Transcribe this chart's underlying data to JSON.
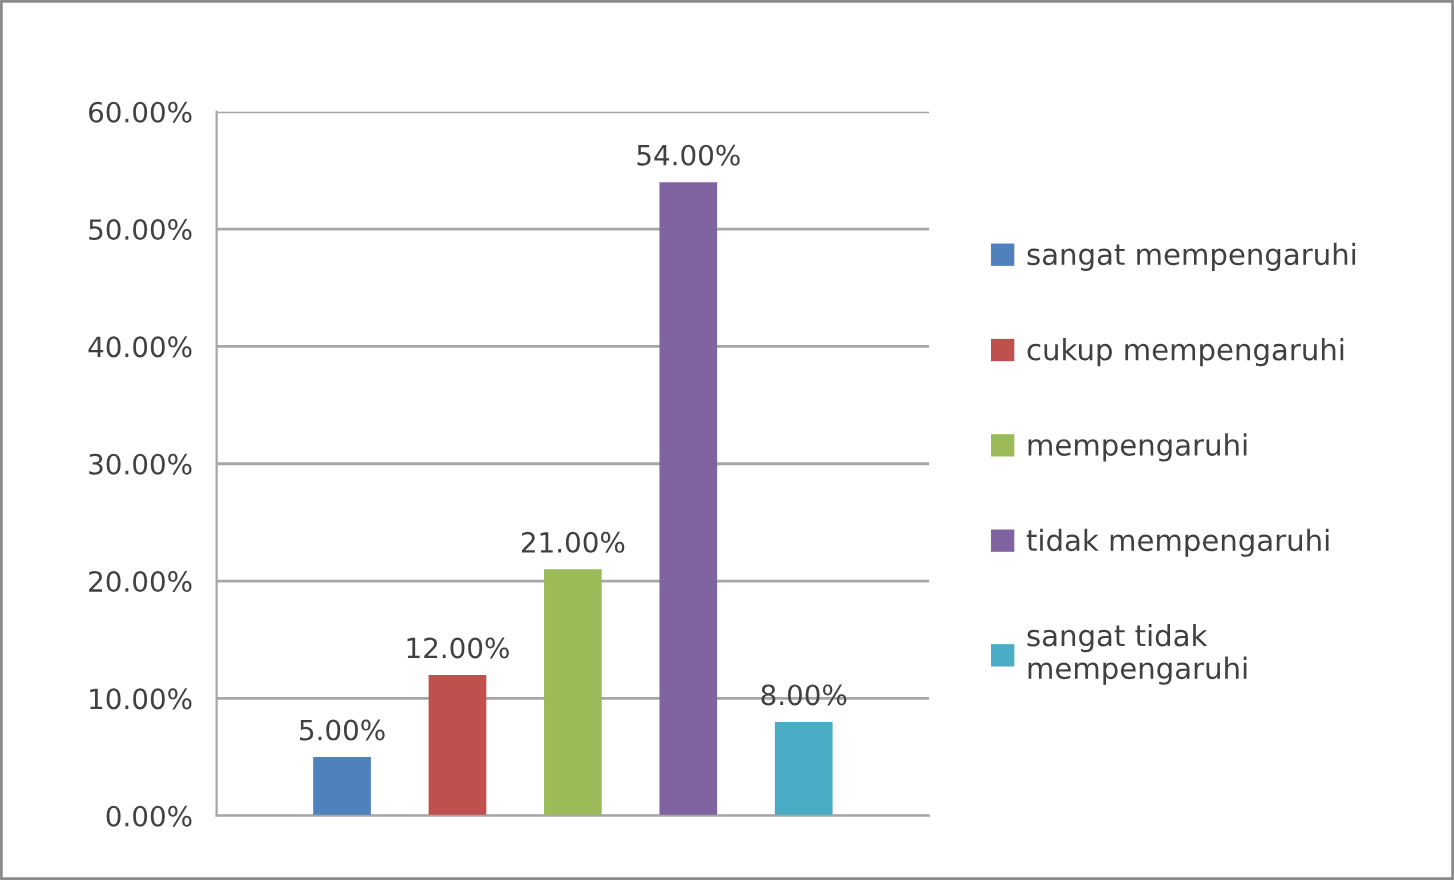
{
  "chart_data": {
    "type": "bar",
    "categories": [
      null
    ],
    "series": [
      {
        "name": "sangat mempengaruhi",
        "color": "#4f81bd",
        "values": [
          5
        ],
        "value_labels": [
          "5.00%"
        ]
      },
      {
        "name": "cukup mempengaruhi",
        "color": "#c0504d",
        "values": [
          12
        ],
        "value_labels": [
          "12.00%"
        ]
      },
      {
        "name": "mempengaruhi",
        "color": "#9bbb59",
        "values": [
          21
        ],
        "value_labels": [
          "21.00%"
        ]
      },
      {
        "name": "tidak mempengaruhi",
        "color": "#8064a2",
        "values": [
          54
        ],
        "value_labels": [
          "54.00%"
        ]
      },
      {
        "name": "sangat tidak\nmempengaruhi",
        "color": "#4bacc6",
        "values": [
          8
        ],
        "value_labels": [
          "8.00%"
        ]
      }
    ],
    "ylim": [
      0,
      60
    ],
    "yticks": [
      {
        "value": 0,
        "label": "0.00%"
      },
      {
        "value": 10,
        "label": "10.00%"
      },
      {
        "value": 20,
        "label": "20.00%"
      },
      {
        "value": 30,
        "label": "30.00%"
      },
      {
        "value": 40,
        "label": "40.00%"
      },
      {
        "value": 50,
        "label": "50.00%"
      },
      {
        "value": 60,
        "label": "60.00%"
      }
    ],
    "grid": "y",
    "legend": "right"
  }
}
